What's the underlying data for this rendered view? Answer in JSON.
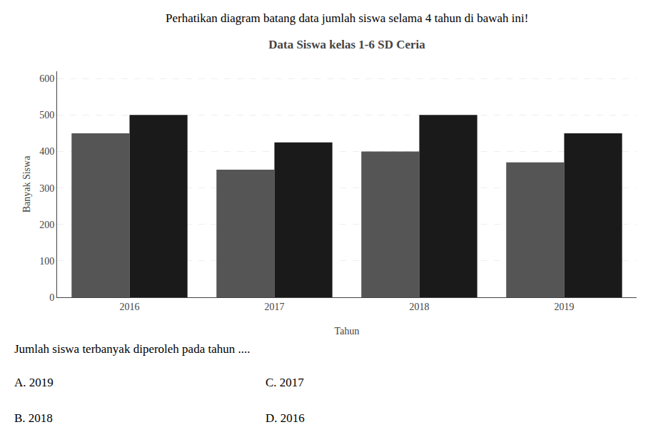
{
  "chart_data": {
    "type": "bar",
    "title": "Data Siswa kelas 1-6 SD Ceria",
    "xlabel": "Tahun",
    "ylabel": "Banyak Siswa",
    "categories": [
      "2016",
      "2017",
      "2018",
      "2019"
    ],
    "series": [
      {
        "color": "#555555",
        "values": [
          450,
          350,
          400,
          370
        ]
      },
      {
        "color": "#1a1a1a",
        "values": [
          500,
          425,
          500,
          450
        ]
      }
    ],
    "ylim": [
      0,
      620
    ],
    "yticks": [
      0,
      100,
      200,
      300,
      400,
      500,
      600
    ],
    "grid": true,
    "annotations": [
      "Perhatikan diagram batang data jumlah siswa selama 4 tahun di bawah ini!",
      "Jumlah siswa terbanyak diperoleh pada tahun ....",
      "A. 2019",
      "B. 2018",
      "C. 2017",
      "D. 2016"
    ]
  }
}
